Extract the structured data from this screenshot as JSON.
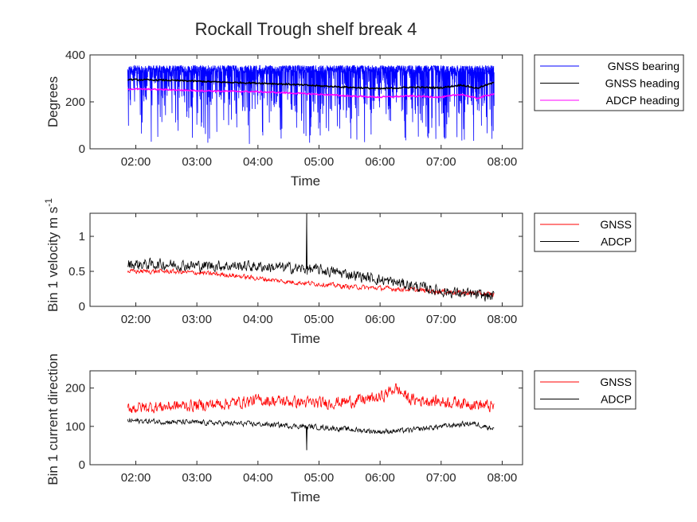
{
  "chart_data": [
    {
      "type": "line",
      "title": "Rockall Trough shelf break 4",
      "xlabel": "Time",
      "ylabel": "Degrees",
      "ylabel_super": "",
      "xlim": [
        "01:15",
        "08:20"
      ],
      "ylim": [
        0,
        400
      ],
      "xticks": [
        "02:00",
        "03:00",
        "04:00",
        "05:00",
        "06:00",
        "07:00",
        "08:00"
      ],
      "yticks": [
        0,
        200,
        400
      ],
      "ytick_labels": [
        "0",
        "200",
        "400"
      ],
      "grid": false,
      "legend_position": "outside-right",
      "series": [
        {
          "name": "GNSS bearing",
          "color": "#0000ff",
          "style": "noisy-band",
          "x": [
            "01:52",
            "02:30",
            "03:00",
            "03:30",
            "04:00",
            "04:30",
            "05:00",
            "05:30",
            "06:00",
            "06:30",
            "07:00",
            "07:30",
            "07:52"
          ],
          "low": [
            0,
            0,
            0,
            0,
            0,
            0,
            0,
            0,
            0,
            0,
            0,
            0,
            0
          ],
          "high": [
            355,
            355,
            355,
            355,
            355,
            355,
            355,
            355,
            355,
            355,
            355,
            355,
            355
          ]
        },
        {
          "name": "GNSS heading",
          "color": "#000000",
          "style": "line",
          "x": [
            "01:52",
            "02:30",
            "03:00",
            "03:30",
            "04:00",
            "04:30",
            "05:00",
            "05:30",
            "06:00",
            "06:30",
            "07:00",
            "07:20",
            "07:35",
            "07:52"
          ],
          "y": [
            295,
            292,
            288,
            283,
            280,
            275,
            268,
            262,
            256,
            262,
            260,
            272,
            258,
            282
          ]
        },
        {
          "name": "ADCP heading",
          "color": "#ff00ff",
          "style": "line",
          "x": [
            "01:52",
            "02:30",
            "03:00",
            "03:30",
            "04:00",
            "04:30",
            "05:00",
            "05:30",
            "06:00",
            "06:30",
            "07:00",
            "07:20",
            "07:35",
            "07:52"
          ],
          "y": [
            255,
            252,
            248,
            245,
            243,
            238,
            232,
            225,
            220,
            225,
            220,
            232,
            215,
            235
          ]
        }
      ]
    },
    {
      "type": "line",
      "title": "",
      "xlabel": "Time",
      "ylabel": "Bin 1 velocity m s",
      "ylabel_super": "-1",
      "xlim": [
        "01:15",
        "08:20"
      ],
      "ylim": [
        0,
        1.33
      ],
      "xticks": [
        "02:00",
        "03:00",
        "04:00",
        "05:00",
        "06:00",
        "07:00",
        "08:00"
      ],
      "yticks": [
        0,
        0.5,
        1
      ],
      "ytick_labels": [
        "0",
        "0.5",
        "1"
      ],
      "grid": false,
      "legend_position": "outside-right",
      "series": [
        {
          "name": "GNSS",
          "color": "#ff0000",
          "style": "noisy-line",
          "noise": 0.03,
          "x": [
            "01:52",
            "02:30",
            "03:00",
            "03:30",
            "04:00",
            "04:30",
            "05:00",
            "05:30",
            "06:00",
            "06:30",
            "07:00",
            "07:30",
            "07:52"
          ],
          "y": [
            0.5,
            0.5,
            0.48,
            0.45,
            0.4,
            0.35,
            0.32,
            0.28,
            0.26,
            0.24,
            0.21,
            0.19,
            0.17
          ]
        },
        {
          "name": "ADCP",
          "color": "#000000",
          "style": "noisy-line",
          "noise": 0.07,
          "x": [
            "01:52",
            "02:30",
            "03:00",
            "03:30",
            "04:00",
            "04:30",
            "05:00",
            "05:30",
            "06:00",
            "06:30",
            "07:00",
            "07:30",
            "07:52"
          ],
          "y": [
            0.6,
            0.6,
            0.58,
            0.58,
            0.57,
            0.55,
            0.52,
            0.46,
            0.38,
            0.3,
            0.22,
            0.17,
            0.14
          ],
          "spike": {
            "x": "04:48",
            "y": 1.33
          }
        }
      ]
    },
    {
      "type": "line",
      "title": "",
      "xlabel": "Time",
      "ylabel": "Bin 1 current direction",
      "ylabel_super": "",
      "xlim": [
        "01:15",
        "08:20"
      ],
      "ylim": [
        0,
        245
      ],
      "xticks": [
        "02:00",
        "03:00",
        "04:00",
        "05:00",
        "06:00",
        "07:00",
        "08:00"
      ],
      "yticks": [
        0,
        100,
        200
      ],
      "ytick_labels": [
        "0",
        "100",
        "200"
      ],
      "grid": false,
      "legend_position": "outside-right",
      "series": [
        {
          "name": "GNSS",
          "color": "#ff0000",
          "style": "noisy-line",
          "noise": 14,
          "x": [
            "01:52",
            "02:30",
            "03:00",
            "03:30",
            "04:00",
            "04:30",
            "05:00",
            "05:30",
            "06:00",
            "06:15",
            "06:30",
            "07:00",
            "07:30",
            "07:52"
          ],
          "y": [
            148,
            152,
            155,
            160,
            168,
            165,
            160,
            165,
            175,
            200,
            170,
            165,
            160,
            150
          ]
        },
        {
          "name": "ADCP",
          "color": "#000000",
          "style": "noisy-line",
          "noise": 6,
          "x": [
            "01:52",
            "02:30",
            "03:00",
            "03:30",
            "04:00",
            "04:30",
            "05:00",
            "05:30",
            "06:00",
            "06:30",
            "07:00",
            "07:30",
            "07:52"
          ],
          "y": [
            115,
            112,
            110,
            108,
            106,
            102,
            98,
            92,
            86,
            90,
            100,
            108,
            95
          ],
          "spike": {
            "x": "04:48",
            "y": 38
          }
        }
      ]
    }
  ]
}
